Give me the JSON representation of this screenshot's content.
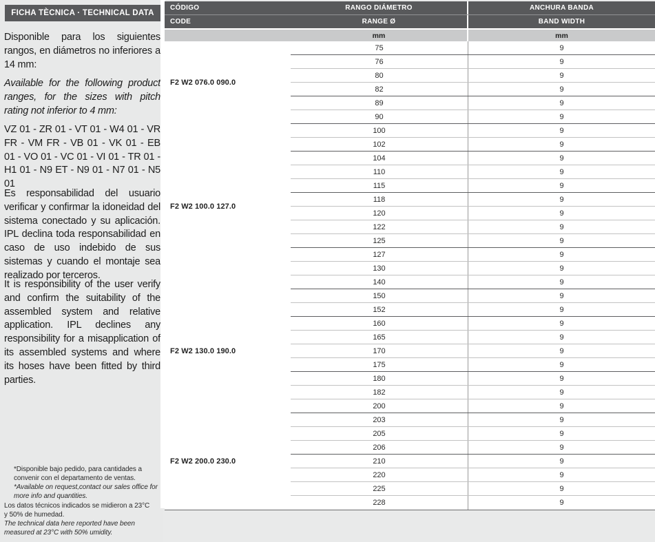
{
  "left_panel": {
    "title": "FICHA TÈCNICA · TECHNICAL DATA",
    "para_es_intro": "Disponible para los siguientes rangos, en diámetros no inferiores a 14 mm:",
    "para_en_intro": "Available for the following product ranges, for the sizes with pitch rating not inferior to 4 mm:",
    "product_codes": "VZ 01 - ZR 01 - VT 01 - W4 01 - VR FR - VM FR - VB 01 - VK 01 - EB 01 - VO 01 - VC 01 - VI 01 - TR 01 - H1 01 - N9 ET - N9 01 - N7 01 - N5 01",
    "para_es_disclaimer": "Es responsabilidad del usuario verificar y confirmar la idoneidad del sistema conectado y su aplicación. IPL declina toda responsabilidad en caso de uso indebido de sus sistemas y cuando el montaje sea realizado por terceros.",
    "para_en_disclaimer": "It is responsibility of the user verify and confirm the suitability of the assembled system and relative application. IPL declines any responsibility for a misapplication of its assembled systems and where its hoses have been fitted by third parties.",
    "footnote_es_request": "*Disponible bajo pedido, para cantidades a convenir con el departamento de ventas.",
    "footnote_en_request": "*Available on request,contact our sales office for more info and quantities.",
    "footnote_es_tech": "Los datos técnicos indicados se midieron a 23°C y 50% de humedad.",
    "footnote_en_tech": "The technical data here reported have been measured at 23°C with 50% umidity."
  },
  "table": {
    "header": {
      "col1_row1": "CÓDIGO",
      "col1_row2": "CODE",
      "col2_row1": "RANGO DIÁMETRO",
      "col2_row2": "RANGE Ø",
      "col2_unit": "mm",
      "col3_row1": "ANCHURA BANDA",
      "col3_row2": "BAND WIDTH",
      "col3_unit": "mm"
    },
    "band_width_value": "9",
    "groups": [
      {
        "code": "F2 W2  076.0 090.0",
        "diameters": [
          "75",
          "76",
          "80",
          "82",
          "89",
          "90"
        ],
        "heavy_after": [
          "75",
          "82"
        ]
      },
      {
        "code": "F2 W2 100.0 127.0",
        "diameters": [
          "100",
          "102",
          "104",
          "110",
          "115",
          "118",
          "120",
          "122",
          "125",
          "127",
          "130",
          "140"
        ],
        "heavy_after": [
          "102",
          "115",
          "125"
        ]
      },
      {
        "code": "F2 W2 130.0 190.0",
        "diameters": [
          "150",
          "152",
          "160",
          "165",
          "170",
          "175",
          "180",
          "182",
          "200"
        ],
        "heavy_after": [
          "152",
          "175"
        ]
      },
      {
        "code": "F2 W2 200.0 230.0",
        "diameters": [
          "203",
          "205",
          "206",
          "210",
          "220",
          "225",
          "228"
        ],
        "heavy_after": [
          "206"
        ]
      }
    ]
  },
  "colors": {
    "header_bar": "#58595b",
    "unit_bar": "#c9cacb",
    "page_bg": "#e9eaea",
    "row_line": "#c2c2c2",
    "group_line": "#5d5e60"
  }
}
